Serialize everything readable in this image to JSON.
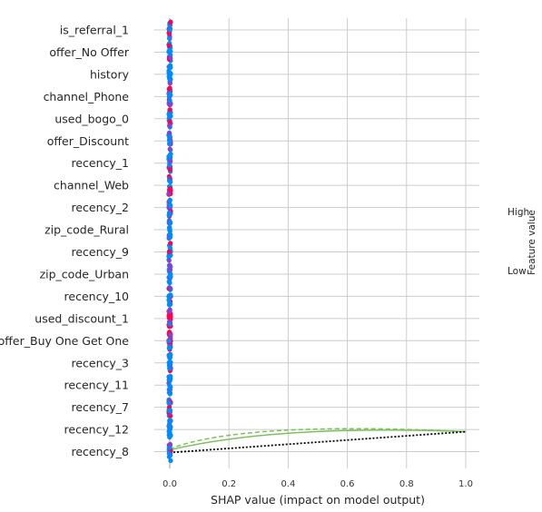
{
  "chart_data": {
    "type": "scatter",
    "subtype": "shap-summary-beeswarm",
    "xlabel": "SHAP value (impact on model output)",
    "x_ticks": [
      "0.0",
      "0.2",
      "0.4",
      "0.6",
      "0.8",
      "1.0"
    ],
    "xlim": [
      -0.05,
      1.05
    ],
    "grid": true,
    "features": [
      "is_referral_1",
      "offer_No Offer",
      "history",
      "channel_Phone",
      "used_bogo_0",
      "offer_Discount",
      "recency_1",
      "channel_Web",
      "recency_2",
      "zip_code_Rural",
      "recency_9",
      "zip_code_Urban",
      "recency_10",
      "used_discount_1",
      "offer_Buy One Get One",
      "recency_3",
      "recency_11",
      "recency_7",
      "recency_12",
      "recency_8"
    ],
    "shap_values_approx": 0.0,
    "colorbar": {
      "title": "Feature value",
      "high_label": "High",
      "low_label": "Low",
      "high_color": "#ff0052",
      "low_color": "#008bfb"
    },
    "overlay_curves": {
      "from": [
        0.0,
        19
      ],
      "to": [
        1.0,
        18.1
      ],
      "styles": [
        "solid",
        "dashed",
        "dotted"
      ],
      "colors": [
        "#7fbf5f",
        "#7fbf5f",
        "#000000"
      ]
    }
  }
}
